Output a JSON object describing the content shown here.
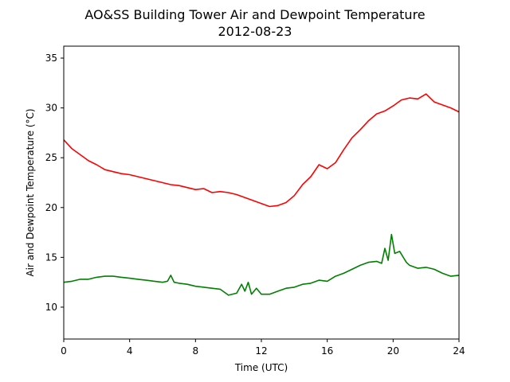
{
  "chart_data": {
    "type": "line",
    "title": "AO&SS Building Tower Air and Dewpoint Temperature",
    "subtitle": "2012-08-23",
    "xlabel": "Time (UTC)",
    "ylabel": "Air and Dewpoint Temperature (°C)",
    "xlim": [
      0,
      24
    ],
    "ylim": [
      6.8,
      36.2
    ],
    "xticks": [
      0,
      4,
      8,
      12,
      16,
      20,
      24
    ],
    "yticks": [
      10,
      15,
      20,
      25,
      30,
      35
    ],
    "grid": false,
    "colors": {
      "air": "#ff0000",
      "dewpoint": "#008000"
    },
    "series": [
      {
        "x": [
          0,
          0.5,
          1,
          1.5,
          2,
          2.5,
          3,
          3.5,
          4,
          4.5,
          5,
          5.5,
          6,
          6.5,
          7,
          7.5,
          8,
          8.5,
          9,
          9.5,
          10,
          10.5,
          11,
          11.5,
          12,
          12.5,
          13,
          13.5,
          14,
          14.5,
          15,
          15.5,
          16,
          16.5,
          17,
          17.5,
          18,
          18.5,
          19,
          19.5,
          20,
          20.5,
          21,
          21.5,
          22,
          22.5,
          23,
          23.5,
          24
        ],
        "values": [
          26.8,
          25.9,
          25.3,
          24.7,
          24.3,
          23.8,
          23.6,
          23.4,
          23.3,
          23.1,
          22.9,
          22.7,
          22.5,
          22.3,
          22.2,
          22.0,
          21.8,
          21.9,
          21.5,
          21.6,
          21.5,
          21.3,
          21.0,
          20.7,
          20.4,
          20.1,
          20.2,
          20.5,
          21.2,
          22.3,
          23.1,
          24.3,
          23.9,
          24.5,
          25.8,
          27.0,
          27.8,
          28.7,
          29.4,
          29.7,
          30.2,
          30.8,
          31.0,
          30.9,
          31.4,
          30.6,
          30.3,
          30.0,
          29.6
        ]
      },
      {
        "x": [
          0,
          0.5,
          1,
          1.5,
          2,
          2.5,
          3,
          3.5,
          4,
          4.5,
          5,
          5.5,
          6,
          6.3,
          6.5,
          6.7,
          7,
          7.5,
          8,
          8.5,
          9,
          9.5,
          10,
          10.5,
          10.8,
          11,
          11.2,
          11.4,
          11.7,
          12,
          12.5,
          13,
          13.5,
          14,
          14.5,
          15,
          15.5,
          16,
          16.5,
          17,
          17.5,
          18,
          18.5,
          19,
          19.3,
          19.5,
          19.7,
          19.9,
          20.1,
          20.4,
          20.8,
          21,
          21.5,
          22,
          22.5,
          23,
          23.5,
          24
        ],
        "values": [
          12.5,
          12.6,
          12.8,
          12.8,
          13.0,
          13.1,
          13.1,
          13.0,
          12.9,
          12.8,
          12.7,
          12.6,
          12.5,
          12.6,
          13.2,
          12.5,
          12.4,
          12.3,
          12.1,
          12.0,
          11.9,
          11.8,
          11.2,
          11.4,
          12.3,
          11.6,
          12.5,
          11.3,
          11.9,
          11.3,
          11.3,
          11.6,
          11.9,
          12.0,
          12.3,
          12.4,
          12.7,
          12.6,
          13.1,
          13.4,
          13.8,
          14.2,
          14.5,
          14.6,
          14.4,
          15.9,
          14.7,
          17.3,
          15.4,
          15.6,
          14.5,
          14.2,
          13.9,
          14.0,
          13.8,
          13.4,
          13.1,
          13.2
        ]
      }
    ]
  }
}
